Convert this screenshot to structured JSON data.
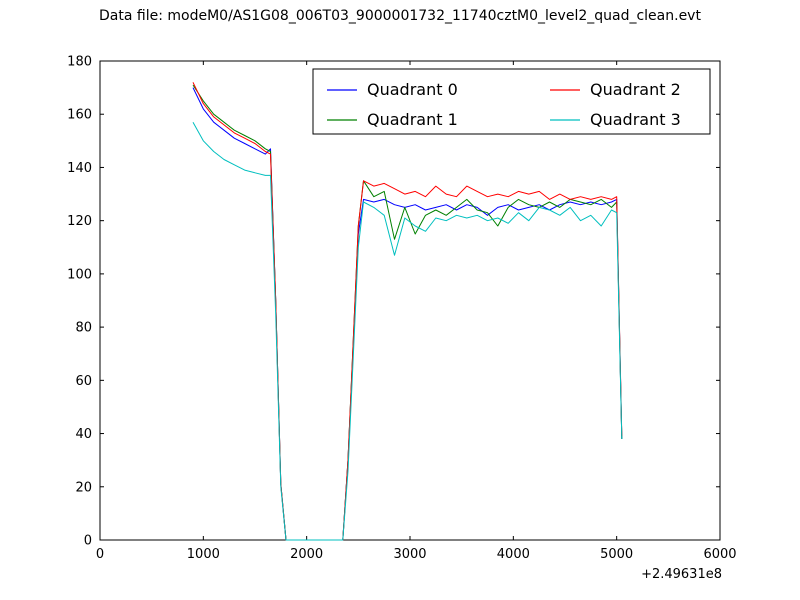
{
  "chart_data": {
    "type": "line",
    "title": "Data file: modeM0/AS1G08_006T03_9000001732_11740cztM0_level2_quad_clean.evt",
    "xlabel": "",
    "ylabel": "",
    "xlim": [
      0,
      6000
    ],
    "ylim": [
      0,
      180
    ],
    "x_ticks": [
      0,
      1000,
      2000,
      3000,
      4000,
      5000,
      6000
    ],
    "y_ticks": [
      0,
      20,
      40,
      60,
      80,
      100,
      120,
      140,
      160,
      180
    ],
    "x_offset_text": "+2.49631e8",
    "grid": false,
    "legend": {
      "position": "upper center-right",
      "columns": 2
    },
    "series": [
      {
        "name": "Quadrant 0",
        "color": "#0000ff",
        "points": [
          [
            900,
            170
          ],
          [
            1000,
            162
          ],
          [
            1100,
            157
          ],
          [
            1200,
            154
          ],
          [
            1300,
            151
          ],
          [
            1400,
            149
          ],
          [
            1500,
            147
          ],
          [
            1600,
            145
          ],
          [
            1650,
            147
          ],
          [
            1700,
            90
          ],
          [
            1750,
            21
          ],
          [
            1800,
            0
          ],
          [
            1900,
            0
          ],
          [
            2000,
            0
          ],
          [
            2100,
            0
          ],
          [
            2200,
            0
          ],
          [
            2300,
            0
          ],
          [
            2350,
            0
          ],
          [
            2400,
            30
          ],
          [
            2500,
            115
          ],
          [
            2550,
            128
          ],
          [
            2650,
            127
          ],
          [
            2750,
            128
          ],
          [
            2850,
            126
          ],
          [
            2950,
            125
          ],
          [
            3050,
            126
          ],
          [
            3150,
            124
          ],
          [
            3250,
            125
          ],
          [
            3350,
            126
          ],
          [
            3450,
            124
          ],
          [
            3550,
            126
          ],
          [
            3650,
            125
          ],
          [
            3750,
            122
          ],
          [
            3850,
            125
          ],
          [
            3950,
            126
          ],
          [
            4050,
            124
          ],
          [
            4150,
            125
          ],
          [
            4250,
            126
          ],
          [
            4350,
            124
          ],
          [
            4450,
            126
          ],
          [
            4550,
            127
          ],
          [
            4650,
            126
          ],
          [
            4750,
            127
          ],
          [
            4850,
            126
          ],
          [
            4950,
            127
          ],
          [
            5000,
            128
          ],
          [
            5050,
            38
          ]
        ]
      },
      {
        "name": "Quadrant 1",
        "color": "#008000",
        "points": [
          [
            900,
            171
          ],
          [
            1000,
            165
          ],
          [
            1100,
            160
          ],
          [
            1200,
            157
          ],
          [
            1300,
            154
          ],
          [
            1400,
            152
          ],
          [
            1500,
            150
          ],
          [
            1600,
            147
          ],
          [
            1650,
            146
          ],
          [
            1700,
            90
          ],
          [
            1750,
            21
          ],
          [
            1800,
            0
          ],
          [
            1900,
            0
          ],
          [
            2000,
            0
          ],
          [
            2100,
            0
          ],
          [
            2200,
            0
          ],
          [
            2300,
            0
          ],
          [
            2350,
            0
          ],
          [
            2400,
            30
          ],
          [
            2500,
            118
          ],
          [
            2550,
            135
          ],
          [
            2650,
            129
          ],
          [
            2750,
            131
          ],
          [
            2850,
            113
          ],
          [
            2950,
            125
          ],
          [
            3050,
            115
          ],
          [
            3150,
            122
          ],
          [
            3250,
            124
          ],
          [
            3350,
            122
          ],
          [
            3450,
            125
          ],
          [
            3550,
            128
          ],
          [
            3650,
            124
          ],
          [
            3750,
            123
          ],
          [
            3850,
            118
          ],
          [
            3950,
            125
          ],
          [
            4050,
            128
          ],
          [
            4150,
            126
          ],
          [
            4250,
            125
          ],
          [
            4350,
            127
          ],
          [
            4450,
            125
          ],
          [
            4550,
            128
          ],
          [
            4650,
            127
          ],
          [
            4750,
            126
          ],
          [
            4850,
            128
          ],
          [
            4950,
            125
          ],
          [
            5000,
            127
          ],
          [
            5050,
            38
          ]
        ]
      },
      {
        "name": "Quadrant 2",
        "color": "#ff0000",
        "points": [
          [
            900,
            172
          ],
          [
            1000,
            164
          ],
          [
            1100,
            159
          ],
          [
            1200,
            156
          ],
          [
            1300,
            153
          ],
          [
            1400,
            151
          ],
          [
            1500,
            149
          ],
          [
            1600,
            146
          ],
          [
            1650,
            145
          ],
          [
            1700,
            90
          ],
          [
            1750,
            21
          ],
          [
            1800,
            0
          ],
          [
            1900,
            0
          ],
          [
            2000,
            0
          ],
          [
            2100,
            0
          ],
          [
            2200,
            0
          ],
          [
            2300,
            0
          ],
          [
            2350,
            0
          ],
          [
            2400,
            30
          ],
          [
            2500,
            118
          ],
          [
            2550,
            135
          ],
          [
            2650,
            133
          ],
          [
            2750,
            134
          ],
          [
            2850,
            132
          ],
          [
            2950,
            130
          ],
          [
            3050,
            131
          ],
          [
            3150,
            129
          ],
          [
            3250,
            133
          ],
          [
            3350,
            130
          ],
          [
            3450,
            129
          ],
          [
            3550,
            133
          ],
          [
            3650,
            131
          ],
          [
            3750,
            129
          ],
          [
            3850,
            130
          ],
          [
            3950,
            129
          ],
          [
            4050,
            131
          ],
          [
            4150,
            130
          ],
          [
            4250,
            131
          ],
          [
            4350,
            128
          ],
          [
            4450,
            130
          ],
          [
            4550,
            128
          ],
          [
            4650,
            129
          ],
          [
            4750,
            128
          ],
          [
            4850,
            129
          ],
          [
            4950,
            128
          ],
          [
            5000,
            129
          ],
          [
            5050,
            39
          ]
        ]
      },
      {
        "name": "Quadrant 3",
        "color": "#00bfbf",
        "points": [
          [
            900,
            157
          ],
          [
            1000,
            150
          ],
          [
            1100,
            146
          ],
          [
            1200,
            143
          ],
          [
            1300,
            141
          ],
          [
            1400,
            139
          ],
          [
            1500,
            138
          ],
          [
            1600,
            137
          ],
          [
            1650,
            137
          ],
          [
            1700,
            85
          ],
          [
            1750,
            20
          ],
          [
            1800,
            0
          ],
          [
            1900,
            0
          ],
          [
            2000,
            0
          ],
          [
            2100,
            0
          ],
          [
            2200,
            0
          ],
          [
            2300,
            0
          ],
          [
            2350,
            0
          ],
          [
            2400,
            26
          ],
          [
            2500,
            110
          ],
          [
            2550,
            127
          ],
          [
            2650,
            125
          ],
          [
            2750,
            122
          ],
          [
            2850,
            107
          ],
          [
            2950,
            121
          ],
          [
            3050,
            118
          ],
          [
            3150,
            116
          ],
          [
            3250,
            121
          ],
          [
            3350,
            120
          ],
          [
            3450,
            122
          ],
          [
            3550,
            121
          ],
          [
            3650,
            122
          ],
          [
            3750,
            120
          ],
          [
            3850,
            121
          ],
          [
            3950,
            119
          ],
          [
            4050,
            123
          ],
          [
            4150,
            120
          ],
          [
            4250,
            125
          ],
          [
            4350,
            124
          ],
          [
            4450,
            122
          ],
          [
            4550,
            125
          ],
          [
            4650,
            120
          ],
          [
            4750,
            122
          ],
          [
            4850,
            118
          ],
          [
            4950,
            124
          ],
          [
            5000,
            123
          ],
          [
            5050,
            38
          ]
        ]
      }
    ]
  }
}
